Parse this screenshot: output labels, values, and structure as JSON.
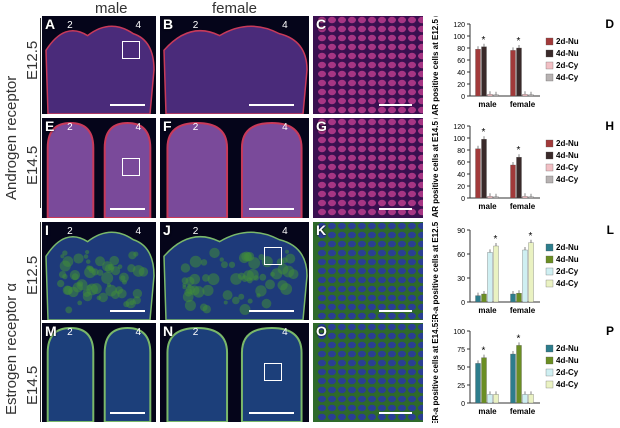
{
  "headers": {
    "male": "male",
    "female": "female"
  },
  "row_groups": [
    {
      "receptor": "Androgen receptor",
      "stages": [
        "E12.5",
        "E14.5"
      ]
    },
    {
      "receptor": "Estrogen receptor α",
      "stages": [
        "E12.5",
        "E14.5"
      ]
    }
  ],
  "digit_labels": [
    "2",
    "4"
  ],
  "panels": [
    {
      "letter": "A",
      "digits": [
        "2",
        "4"
      ],
      "stain": "red",
      "kind": "wide"
    },
    {
      "letter": "B",
      "digits": [
        "2",
        "4"
      ],
      "stain": "red",
      "kind": "wide"
    },
    {
      "letter": "C",
      "digits": [],
      "stain": "redcells",
      "kind": "zoom"
    },
    {
      "letter": "E",
      "digits": [
        "2",
        "4"
      ],
      "stain": "red",
      "kind": "tips"
    },
    {
      "letter": "F",
      "digits": [
        "2",
        "4"
      ],
      "stain": "red",
      "kind": "tips"
    },
    {
      "letter": "G",
      "digits": [],
      "stain": "redcells",
      "kind": "zoom"
    },
    {
      "letter": "I",
      "digits": [
        "2",
        "4"
      ],
      "stain": "green",
      "kind": "wide"
    },
    {
      "letter": "J",
      "digits": [
        "2",
        "4"
      ],
      "stain": "green",
      "kind": "wide"
    },
    {
      "letter": "K",
      "digits": [],
      "stain": "greencells",
      "kind": "zoom"
    },
    {
      "letter": "M",
      "digits": [
        "2",
        "4"
      ],
      "stain": "green",
      "kind": "tips"
    },
    {
      "letter": "N",
      "digits": [
        "2",
        "4"
      ],
      "stain": "green",
      "kind": "tips"
    },
    {
      "letter": "O",
      "digits": [],
      "stain": "greencells",
      "kind": "zoom"
    }
  ],
  "chart_data": [
    {
      "letter": "D",
      "type": "bar",
      "ylabel": "AR positive cells at E12.5 (%)",
      "ylim": [
        0,
        120
      ],
      "yticks": [
        0,
        20,
        40,
        60,
        80,
        100,
        120
      ],
      "categories": [
        "male",
        "female"
      ],
      "series": [
        {
          "name": "2d-Nu",
          "color": "#a23a3a",
          "values": [
            78,
            76
          ]
        },
        {
          "name": "4d-Nu",
          "color": "#3a2a2a",
          "values": [
            82,
            80
          ]
        },
        {
          "name": "2d-Cy",
          "color": "#f1bfc4",
          "values": [
            3,
            3
          ]
        },
        {
          "name": "4d-Cy",
          "color": "#b7b2b2",
          "values": [
            2,
            2
          ]
        }
      ],
      "star_series": 1
    },
    {
      "letter": "H",
      "type": "bar",
      "ylabel": "AR positive cells at E14.5 (%)",
      "ylim": [
        0,
        120
      ],
      "yticks": [
        0,
        20,
        40,
        60,
        80,
        100,
        120
      ],
      "categories": [
        "male",
        "female"
      ],
      "series": [
        {
          "name": "2d-Nu",
          "color": "#a23a3a",
          "values": [
            82,
            55
          ]
        },
        {
          "name": "4d-Nu",
          "color": "#3a2a2a",
          "values": [
            98,
            68
          ]
        },
        {
          "name": "2d-Cy",
          "color": "#f1bfc4",
          "values": [
            3,
            3
          ]
        },
        {
          "name": "4d-Cy",
          "color": "#b7b2b2",
          "values": [
            2,
            2
          ]
        }
      ],
      "star_series": 1
    },
    {
      "letter": "L",
      "type": "bar",
      "ylabel": "ER-a positive cells at E12.5 (%)",
      "ylim": [
        0,
        90
      ],
      "yticks": [
        0,
        30,
        60,
        90
      ],
      "categories": [
        "male",
        "female"
      ],
      "series": [
        {
          "name": "2d-Nu",
          "color": "#2d7d8c",
          "values": [
            8,
            10
          ]
        },
        {
          "name": "4d-Nu",
          "color": "#6b8e23",
          "values": [
            10,
            11
          ]
        },
        {
          "name": "2d-Cy",
          "color": "#cfeff2",
          "values": [
            62,
            65
          ]
        },
        {
          "name": "4d-Cy",
          "color": "#eaf2c2",
          "values": [
            70,
            74
          ]
        }
      ],
      "star_series": 3
    },
    {
      "letter": "P",
      "type": "bar",
      "ylabel": "ER-a positive cells at E14.5 (%)",
      "ylim": [
        0,
        100
      ],
      "yticks": [
        0,
        25,
        50,
        75,
        100
      ],
      "categories": [
        "male",
        "female"
      ],
      "series": [
        {
          "name": "2d-Nu",
          "color": "#2d7d8c",
          "values": [
            55,
            68
          ]
        },
        {
          "name": "4d-Nu",
          "color": "#6b8e23",
          "values": [
            63,
            80
          ]
        },
        {
          "name": "2d-Cy",
          "color": "#cfeff2",
          "values": [
            12,
            12
          ]
        },
        {
          "name": "4d-Cy",
          "color": "#eaf2c2",
          "values": [
            12,
            12
          ]
        }
      ],
      "star_series": 1
    }
  ]
}
